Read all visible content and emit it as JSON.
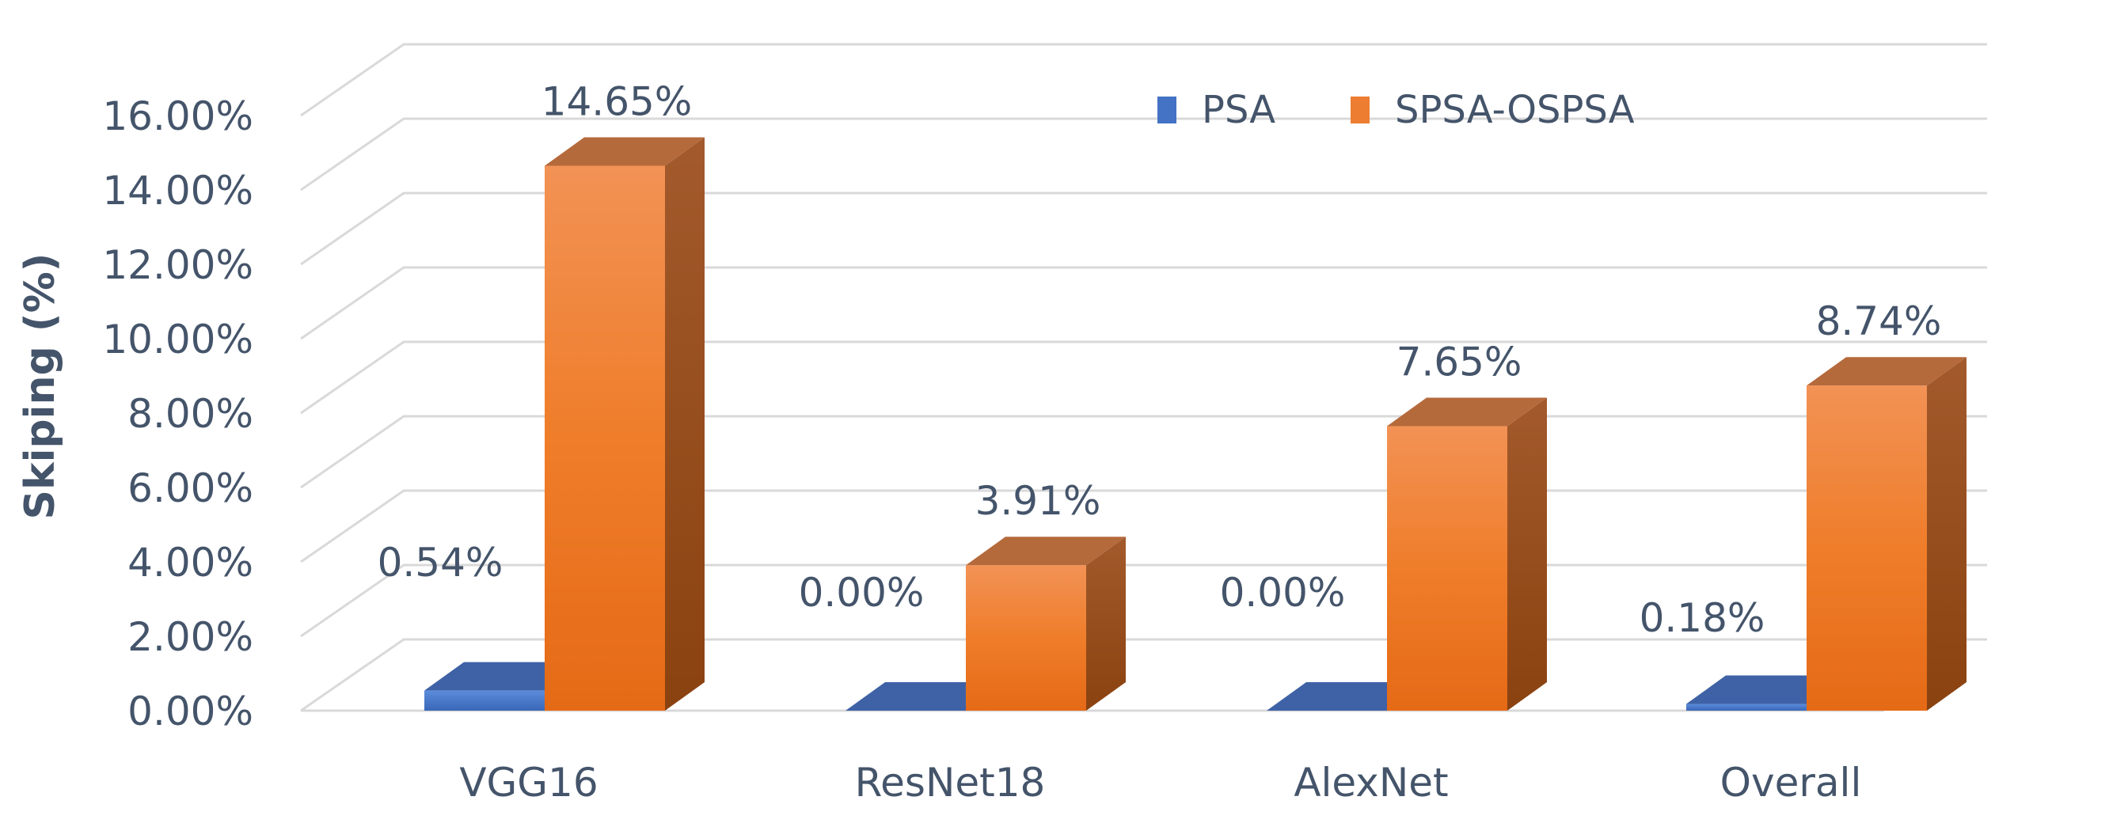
{
  "chart_data": {
    "type": "bar",
    "style": "3d-clustered-column",
    "title": "",
    "xlabel": "",
    "ylabel": "Skiping (%)",
    "ylim": [
      0,
      16
    ],
    "y_ticks": [
      "0.00%",
      "2.00%",
      "4.00%",
      "6.00%",
      "8.00%",
      "10.00%",
      "12.00%",
      "14.00%",
      "16.00%"
    ],
    "categories": [
      "VGG16",
      "ResNet18",
      "AlexNet",
      "Overall"
    ],
    "series": [
      {
        "name": "PSA",
        "values": [
          0.54,
          0.0,
          0.0,
          0.18
        ],
        "labels": [
          "0.54%",
          "0.00%",
          "0.00%",
          "0.18%"
        ],
        "color": "#4472C4"
      },
      {
        "name": "SPSA-OSPSA",
        "values": [
          14.65,
          3.91,
          7.65,
          8.74
        ],
        "labels": [
          "14.65%",
          "3.91%",
          "7.65%",
          "8.74%"
        ],
        "color": "#ED7D31"
      }
    ],
    "grid": true,
    "legend_position": "top-right",
    "text_color": "#44546A",
    "grid_color": "#D9D9D9"
  }
}
